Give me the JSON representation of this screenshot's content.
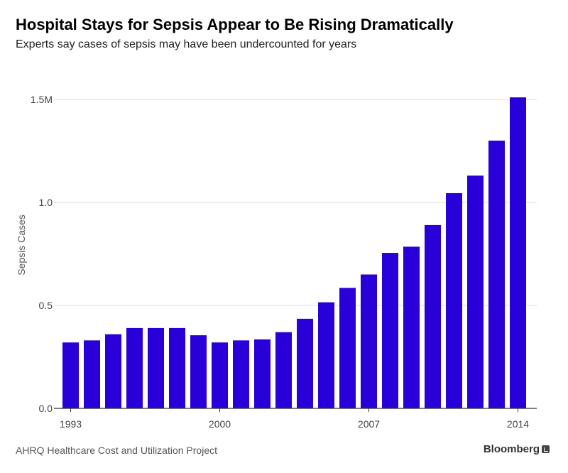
{
  "header": {
    "title": "Hospital Stays for Sepsis Appear to Be Rising Dramatically",
    "subtitle": "Experts say cases of sepsis may have been undercounted for years"
  },
  "footer": {
    "source": "AHRQ Healthcare Cost and Utilization Project",
    "brand": "Bloomberg",
    "brand_icon": "bloomberg-logo-icon"
  },
  "colors": {
    "bar": "#2a00d9",
    "grid": "#dddddd",
    "axis": "#333333",
    "tick_text": "#444444"
  },
  "chart_data": {
    "type": "bar",
    "title": "Hospital Stays for Sepsis Appear to Be Rising Dramatically",
    "subtitle": "Experts say cases of sepsis may have been undercounted for years",
    "xlabel": "",
    "ylabel": "Sepsis Cases",
    "categories": [
      1993,
      1994,
      1995,
      1996,
      1997,
      1998,
      1999,
      2000,
      2001,
      2002,
      2003,
      2004,
      2005,
      2006,
      2007,
      2008,
      2009,
      2010,
      2011,
      2012,
      2013,
      2014
    ],
    "values": [
      0.32,
      0.33,
      0.36,
      0.39,
      0.39,
      0.39,
      0.355,
      0.32,
      0.33,
      0.335,
      0.37,
      0.435,
      0.515,
      0.585,
      0.65,
      0.755,
      0.785,
      0.89,
      1.045,
      1.13,
      1.3,
      1.51
    ],
    "x_tick_labels": [
      "1993",
      "2000",
      "2007",
      "2014"
    ],
    "y_ticks": [
      0,
      0.5,
      1.0,
      1.5
    ],
    "y_tick_labels": [
      "0.0",
      "0.5",
      "1.0",
      "1.5M"
    ],
    "ylim": [
      0,
      1.5
    ],
    "grid": true,
    "legend": "none"
  }
}
